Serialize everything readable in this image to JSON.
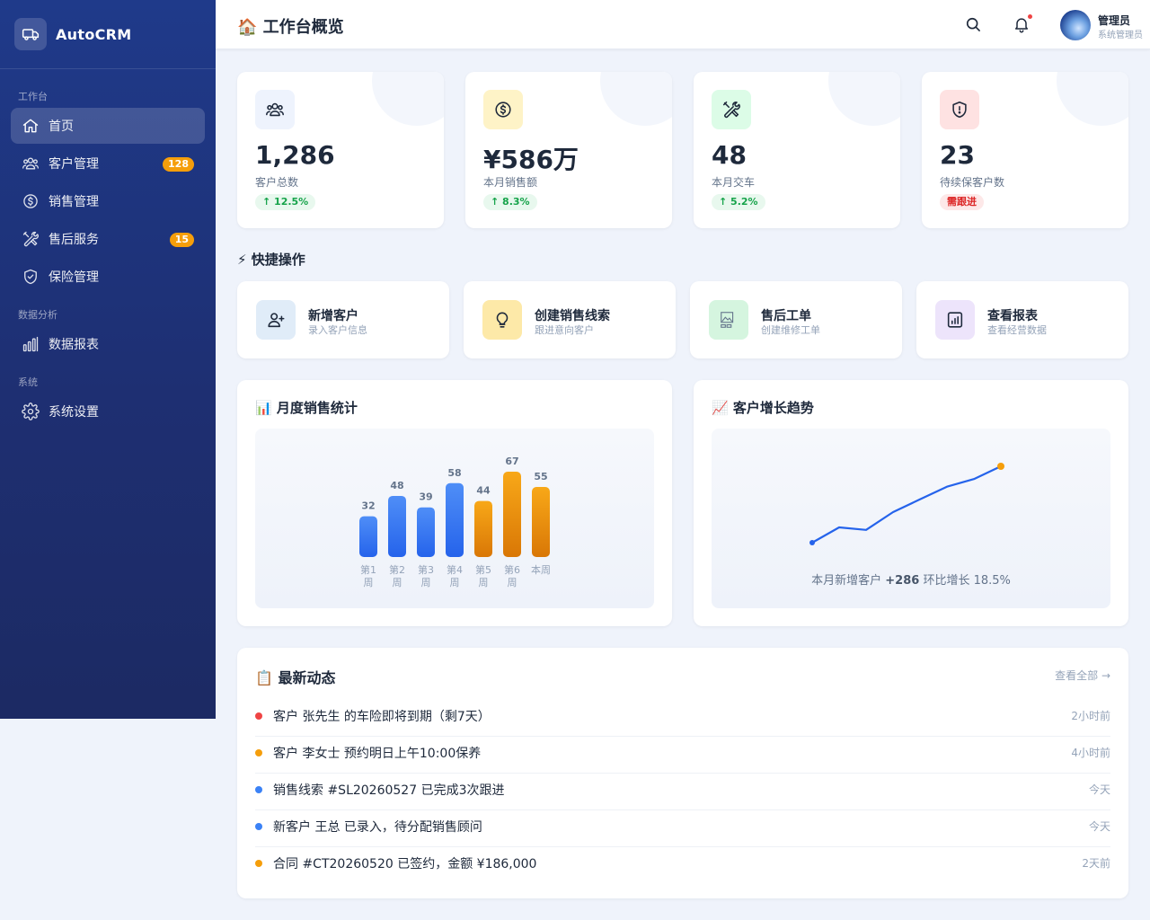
{
  "app": {
    "brand": "AutoCRM"
  },
  "sidebar": {
    "sections": [
      "工作台",
      "数据分析",
      "系统"
    ],
    "items": [
      {
        "label": "首页",
        "icon": "home-icon",
        "active": true
      },
      {
        "label": "客户管理",
        "icon": "users-icon",
        "badge": "128"
      },
      {
        "label": "销售管理",
        "icon": "dollar-icon"
      },
      {
        "label": "售后服务",
        "icon": "tools-icon",
        "badge": "15"
      },
      {
        "label": "保险管理",
        "icon": "shield-icon"
      },
      {
        "label": "数据报表",
        "icon": "bar-chart-icon"
      },
      {
        "label": "系统设置",
        "icon": "gear-icon"
      }
    ]
  },
  "header": {
    "title": "🏠 工作台概览",
    "user": {
      "name": "管理员",
      "role": "系统管理员"
    }
  },
  "stats": [
    {
      "value": "1,286",
      "label": "客户总数",
      "trend": "↑ 12.5%",
      "color": "#3b82f6",
      "icon": "users-icon"
    },
    {
      "value": "¥586万",
      "label": "本月销售额",
      "trend": "↑ 8.3%",
      "color": "#f59e0b",
      "icon": "dollar-icon"
    },
    {
      "value": "48",
      "label": "本月交车",
      "trend": "↑ 5.2%",
      "color": "#16a34a",
      "icon": "tools-icon"
    },
    {
      "value": "23",
      "label": "待续保客户数",
      "trend": "需跟进",
      "color": "#ef4444",
      "icon": "shield-alert-icon"
    }
  ],
  "quick_actions": {
    "title": "⚡ 快捷操作",
    "items": [
      {
        "title": "新增客户",
        "sub": "录入客户信息",
        "icon": "user-plus-icon"
      },
      {
        "title": "创建销售线索",
        "sub": "跟进意向客户",
        "icon": "lightbulb-icon"
      },
      {
        "title": "售后工单",
        "sub": "创建维修工单",
        "icon": "broken-image-icon"
      },
      {
        "title": "查看报表",
        "sub": "查看经营数据",
        "icon": "report-icon"
      }
    ]
  },
  "charts": {
    "sales_title": "📊 月度销售统计",
    "growth_title": "📈 客户增长趋势",
    "growth_summary_prefix": "本月新增客户",
    "growth_summary_value": "+286",
    "growth_summary_suffix": "环比增长 18.5%"
  },
  "chart_data": [
    {
      "type": "bar",
      "title": "📊 月度销售统计",
      "categories": [
        "第1周",
        "第2周",
        "第3周",
        "第4周",
        "第5周",
        "第6周",
        "本周"
      ],
      "values": [
        32,
        48,
        39,
        58,
        44,
        67,
        55
      ],
      "colors": [
        "#3b82f6",
        "#3b82f6",
        "#3b82f6",
        "#3b82f6",
        "#f59e0b",
        "#f59e0b",
        "#f59e0b"
      ],
      "ylim": [
        0,
        70
      ]
    },
    {
      "type": "line",
      "title": "📈 客户增长趋势",
      "x": [
        1,
        2,
        3,
        4,
        5,
        6,
        7,
        8
      ],
      "values": [
        840,
        900,
        890,
        960,
        1010,
        1060,
        1090,
        1140
      ],
      "color": "#2563eb",
      "highlight_color": "#f59e0b"
    }
  ],
  "activity": {
    "title": "📋 最新动态",
    "view_all": "查看全部 →",
    "items": [
      {
        "text": "客户 张先生 的车险即将到期（剩7天）",
        "time": "2小时前",
        "color": "#ef4444"
      },
      {
        "text": "客户 李女士 预约明日上午10:00保养",
        "time": "4小时前",
        "color": "#f59e0b"
      },
      {
        "text": "销售线索 #SL20260527 已完成3次跟进",
        "time": "今天",
        "color": "#3b82f6"
      },
      {
        "text": "新客户 王总 已录入，待分配销售顾问",
        "time": "今天",
        "color": "#3b82f6"
      },
      {
        "text": "合同 #CT20260520 已签约，金额 ¥186,000",
        "time": "2天前",
        "color": "#f59e0b"
      }
    ]
  }
}
